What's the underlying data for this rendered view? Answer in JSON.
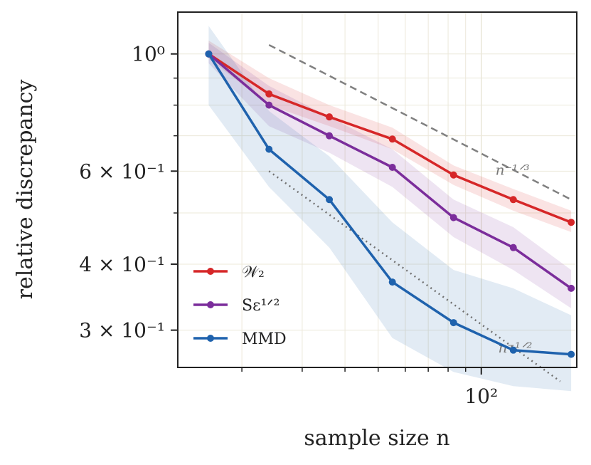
{
  "chart_data": {
    "type": "line",
    "xlabel": "sample size n",
    "ylabel": "relative discrepancy",
    "xscale": "log",
    "yscale": "log",
    "xlim": [
      13,
      190
    ],
    "ylim": [
      0.255,
      1.2
    ],
    "x_tick_labels": [
      {
        "value": 100,
        "label": "10²"
      }
    ],
    "y_tick_labels": [
      {
        "value": 1.0,
        "label": "10⁰"
      },
      {
        "value": 0.6,
        "label": "6 × 10⁻¹"
      },
      {
        "value": 0.4,
        "label": "4 × 10⁻¹"
      },
      {
        "value": 0.3,
        "label": "3 × 10⁻¹"
      }
    ],
    "grid": true,
    "legend_position": "lower-left",
    "series": [
      {
        "name": "𝒲₂",
        "color": "#d62728",
        "x": [
          16,
          24,
          36,
          55,
          83,
          124,
          183
        ],
        "y": [
          1.0,
          0.84,
          0.76,
          0.69,
          0.59,
          0.53,
          0.48
        ],
        "lower": [
          0.98,
          0.8,
          0.73,
          0.66,
          0.565,
          0.505,
          0.46
        ],
        "upper": [
          1.06,
          0.9,
          0.8,
          0.725,
          0.615,
          0.555,
          0.505
        ]
      },
      {
        "name": "S_ε^{1/2}",
        "color": "#7b2d9b",
        "x": [
          16,
          24,
          36,
          55,
          83,
          124,
          183
        ],
        "y": [
          1.0,
          0.8,
          0.7,
          0.61,
          0.49,
          0.43,
          0.36
        ],
        "lower": [
          0.96,
          0.73,
          0.65,
          0.56,
          0.45,
          0.39,
          0.33
        ],
        "upper": [
          1.05,
          0.87,
          0.76,
          0.66,
          0.53,
          0.47,
          0.39
        ]
      },
      {
        "name": "MMD",
        "color": "#1f62ad",
        "x": [
          16,
          24,
          36,
          55,
          83,
          124,
          183
        ],
        "y": [
          1.0,
          0.66,
          0.53,
          0.37,
          0.31,
          0.275,
          0.27
        ],
        "lower": [
          0.8,
          0.56,
          0.43,
          0.29,
          0.25,
          0.235,
          0.23
        ],
        "upper": [
          1.13,
          0.78,
          0.64,
          0.48,
          0.39,
          0.36,
          0.32
        ]
      }
    ],
    "reference_lines": [
      {
        "label": "n^{-1/3}",
        "style": "dashed",
        "color": "#808080",
        "x": [
          24,
          183
        ],
        "y": [
          1.04,
          0.53
        ],
        "label_x": 110,
        "label_y": 0.59
      },
      {
        "label": "n^{-1/2}",
        "style": "dotted",
        "color": "#707070",
        "x": [
          24,
          170
        ],
        "y": [
          0.6,
          0.24
        ],
        "label_x": 112,
        "label_y": 0.272
      }
    ]
  }
}
